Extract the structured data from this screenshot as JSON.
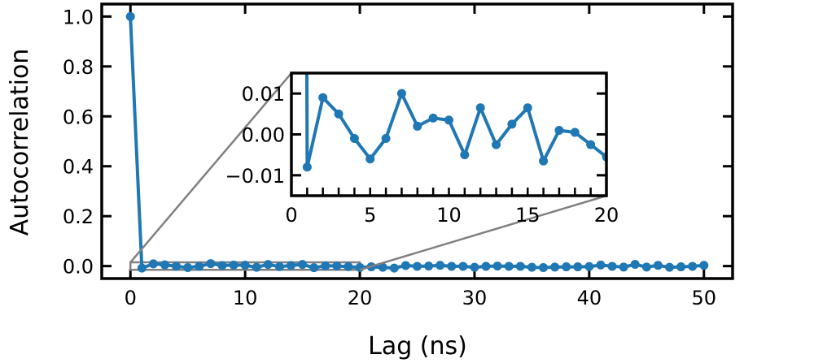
{
  "chart_data": [
    {
      "type": "line",
      "panel": "main",
      "xlabel": "Lag (ns)",
      "ylabel": "Autocorrelation",
      "xlim": [
        -2.5,
        52.5
      ],
      "ylim": [
        -0.05,
        1.05
      ],
      "xticks": [
        0,
        10,
        20,
        30,
        40,
        50
      ],
      "yticks": [
        0.0,
        0.2,
        0.4,
        0.6,
        0.8,
        1.0
      ],
      "xtick_labels": [
        "0",
        "10",
        "20",
        "30",
        "40",
        "50"
      ],
      "ytick_labels": [
        "0.0",
        "0.2",
        "0.4",
        "0.6",
        "0.8",
        "1.0"
      ],
      "color": "#1f77b4",
      "x": [
        0,
        1,
        2,
        3,
        4,
        5,
        6,
        7,
        8,
        9,
        10,
        11,
        12,
        13,
        14,
        15,
        16,
        17,
        18,
        19,
        20,
        21,
        22,
        23,
        24,
        25,
        26,
        27,
        28,
        29,
        30,
        31,
        32,
        33,
        34,
        35,
        36,
        37,
        38,
        39,
        40,
        41,
        42,
        43,
        44,
        45,
        46,
        47,
        48,
        49,
        50
      ],
      "y": [
        1.0,
        -0.008,
        0.009,
        0.005,
        -0.001,
        -0.006,
        -0.001,
        0.01,
        0.002,
        0.004,
        0.0035,
        -0.005,
        0.0065,
        -0.0025,
        0.0025,
        0.0065,
        -0.0065,
        0.001,
        0.0005,
        -0.0025,
        -0.0055,
        -0.003,
        -0.005,
        -0.008,
        0.002,
        -0.001,
        0.0,
        0.003,
        -0.001,
        -0.001,
        -0.005,
        -0.001,
        0.0,
        -0.001,
        -0.001,
        -0.005,
        -0.006,
        -0.004,
        -0.003,
        -0.003,
        -0.002,
        0.004,
        -0.001,
        -0.004,
        0.007,
        -0.004,
        0.003,
        -0.005,
        -0.003,
        -0.001,
        0.003
      ],
      "grid": false,
      "zoom_box": {
        "x": [
          0,
          20
        ],
        "y": [
          -0.015,
          0.015
        ]
      }
    },
    {
      "type": "line",
      "panel": "inset",
      "xlim": [
        0,
        20
      ],
      "ylim": [
        -0.015,
        0.015
      ],
      "xticks": [
        0,
        5,
        10,
        15,
        20
      ],
      "yticks": [
        -0.01,
        0.0,
        0.01
      ],
      "xtick_labels": [
        "0",
        "5",
        "10",
        "15",
        "20"
      ],
      "ytick_labels": [
        "−0.01",
        "0.00",
        "0.01"
      ],
      "color": "#1f77b4",
      "grid": false
    }
  ]
}
